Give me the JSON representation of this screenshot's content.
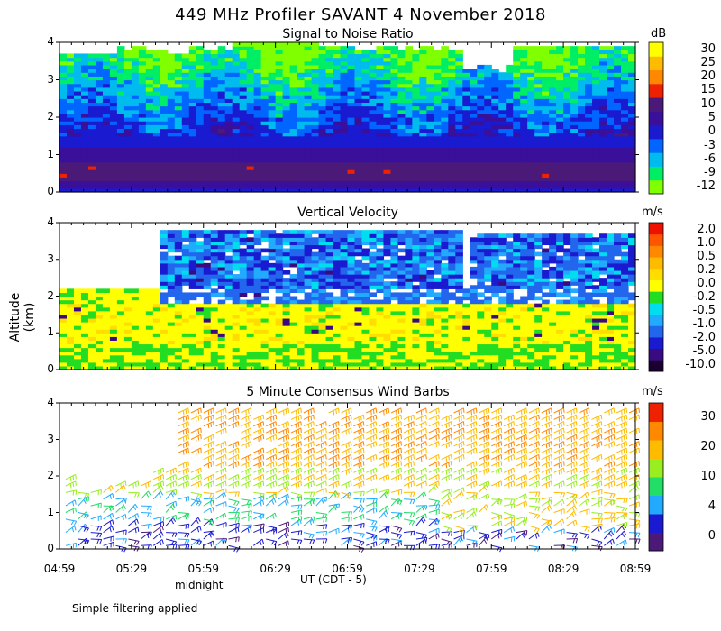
{
  "title": "449 MHz Profiler SAVANT  4 November 2018",
  "y_axis_label": "Altitude (km)",
  "x_axis_label": "UT  (CDT - 5)",
  "midnight_label": "midnight",
  "footnote": "Simple filtering applied",
  "x_ticks": [
    "04:59",
    "05:29",
    "05:59",
    "06:29",
    "06:59",
    "07:29",
    "07:59",
    "08:29",
    "08:59"
  ],
  "colors": {
    "snr": [
      "#7fff00",
      "#00ee66",
      "#00bbee",
      "#0066ff",
      "#1a1ad0",
      "#3a0f9a",
      "#4b1a78",
      "#ee2200",
      "#ff8800",
      "#ffbb00",
      "#ffff00",
      "#ffffff"
    ],
    "velocity": [
      "#1a0030",
      "#3a0a80",
      "#1a1ad0",
      "#2266ee",
      "#22aaff",
      "#00ddee",
      "#22dd22",
      "#ffff00",
      "#ffdd00",
      "#ffbb00",
      "#ff8800",
      "#ff5500",
      "#ee1100"
    ],
    "wind": [
      "#4b1a78",
      "#1a1ad0",
      "#22aaff",
      "#22dd66",
      "#99ee22",
      "#ffbb00",
      "#ff8800",
      "#ee2200"
    ]
  },
  "chart_data": [
    {
      "type": "heatmap",
      "title": "Signal to Noise Ratio",
      "unit": "dB",
      "xlim": [
        "04:59",
        "08:59"
      ],
      "ylim": [
        0,
        4
      ],
      "y_ticks": [
        0,
        1,
        2,
        3,
        4
      ],
      "colorbar_labels": [
        "30",
        "25",
        "20",
        "15",
        "10",
        "5",
        "0",
        "-3",
        "-6",
        "-9",
        "-12"
      ],
      "profile": [
        {
          "altitude_km": 0.6,
          "snr_db": 5
        },
        {
          "altitude_km": 1.0,
          "snr_db": 0
        },
        {
          "altitude_km": 1.3,
          "snr_db": -3
        },
        {
          "altitude_km": 2.0,
          "snr_db": -6
        },
        {
          "altitude_km": 3.0,
          "snr_db": -9
        },
        {
          "altitude_km": 3.7,
          "snr_db": -12
        }
      ]
    },
    {
      "type": "heatmap",
      "title": "Vertical Velocity",
      "unit": "m/s",
      "xlim": [
        "04:59",
        "08:59"
      ],
      "ylim": [
        0,
        4
      ],
      "y_ticks": [
        0,
        1,
        2,
        3,
        4
      ],
      "colorbar_labels": [
        "2.0",
        "1.0",
        "0.5",
        "0.2",
        "0.0",
        "-0.2",
        "-0.5",
        "-1.0",
        "-2.0",
        "-5.0",
        "-10.0"
      ],
      "profile": [
        {
          "altitude_km": 0.5,
          "velocity_ms": -0.2
        },
        {
          "altitude_km": 1.2,
          "velocity_ms": 0.2
        },
        {
          "altitude_km": 2.0,
          "velocity_ms": 0.0
        },
        {
          "altitude_km": 3.0,
          "velocity_ms": -1.0
        }
      ]
    },
    {
      "type": "scatter",
      "title": "5 Minute Consensus Wind Barbs",
      "unit": "m/s",
      "xlim": [
        "04:59",
        "08:59"
      ],
      "ylim": [
        0,
        4
      ],
      "y_ticks": [
        0,
        1,
        2,
        3,
        4
      ],
      "colorbar_labels": [
        "30",
        "20",
        "10",
        "4",
        "0"
      ],
      "speed_by_altitude": [
        {
          "altitude_km": 0.5,
          "speed_ms": 4
        },
        {
          "altitude_km": 1.0,
          "speed_ms": 8
        },
        {
          "altitude_km": 2.0,
          "speed_ms": 14
        },
        {
          "altitude_km": 3.0,
          "speed_ms": 20
        }
      ]
    }
  ]
}
